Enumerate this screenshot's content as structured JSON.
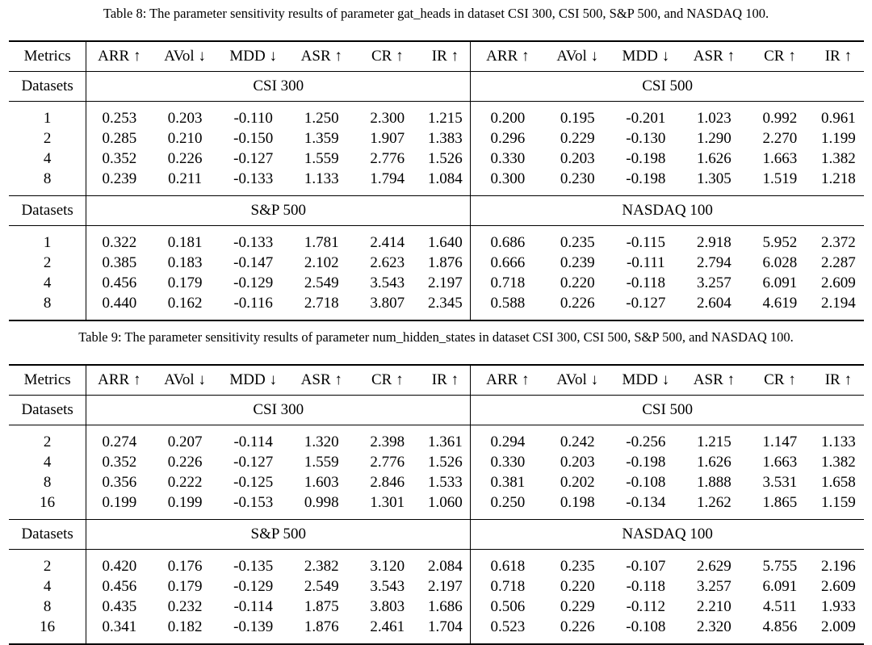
{
  "tables": [
    {
      "caption": "Table 8: The parameter sensitivity results of parameter gat_heads in dataset CSI 300, CSI 500, S&P 500, and NASDAQ 100.",
      "metrics_label": "Metrics",
      "metrics": [
        "ARR ↑",
        "AVol ↓",
        "MDD ↓",
        "ASR ↑",
        "CR ↑",
        "IR ↑",
        "ARR ↑",
        "AVol ↓",
        "MDD ↓",
        "ASR ↑",
        "CR ↑",
        "IR ↑"
      ],
      "datasets_label": "Datasets",
      "blocks": [
        {
          "left_dataset": "CSI 300",
          "right_dataset": "CSI 500",
          "rows": [
            {
              "key": "1",
              "values": [
                "0.253",
                "0.203",
                "-0.110",
                "1.250",
                "2.300",
                "1.215",
                "0.200",
                "0.195",
                "-0.201",
                "1.023",
                "0.992",
                "0.961"
              ],
              "bold": [
                false,
                true,
                true,
                false,
                false,
                false,
                false,
                true,
                false,
                false,
                false,
                false
              ]
            },
            {
              "key": "2",
              "values": [
                "0.285",
                "0.210",
                "-0.150",
                "1.359",
                "1.907",
                "1.383",
                "0.296",
                "0.229",
                "-0.130",
                "1.290",
                "2.270",
                "1.199"
              ],
              "bold": [
                false,
                false,
                false,
                false,
                false,
                false,
                false,
                false,
                true,
                false,
                true,
                false
              ]
            },
            {
              "key": "4",
              "values": [
                "0.352",
                "0.226",
                "-0.127",
                "1.559",
                "2.776",
                "1.526",
                "0.330",
                "0.203",
                "-0.198",
                "1.626",
                "1.663",
                "1.382"
              ],
              "bold": [
                true,
                false,
                false,
                true,
                true,
                true,
                true,
                false,
                false,
                true,
                false,
                true
              ]
            },
            {
              "key": "8",
              "values": [
                "0.239",
                "0.211",
                "-0.133",
                "1.133",
                "1.794",
                "1.084",
                "0.300",
                "0.230",
                "-0.198",
                "1.305",
                "1.519",
                "1.218"
              ],
              "bold": [
                false,
                false,
                false,
                false,
                false,
                false,
                false,
                false,
                false,
                false,
                false,
                false
              ]
            }
          ]
        },
        {
          "left_dataset": "S&P 500",
          "right_dataset": "NASDAQ 100",
          "rows": [
            {
              "key": "1",
              "values": [
                "0.322",
                "0.181",
                "-0.133",
                "1.781",
                "2.414",
                "1.640",
                "0.686",
                "0.235",
                "-0.115",
                "2.918",
                "5.952",
                "2.372"
              ],
              "bold": [
                false,
                false,
                false,
                false,
                false,
                false,
                false,
                false,
                false,
                false,
                false,
                false
              ]
            },
            {
              "key": "2",
              "values": [
                "0.385",
                "0.183",
                "-0.147",
                "2.102",
                "2.623",
                "1.876",
                "0.666",
                "0.239",
                "-0.111",
                "2.794",
                "6.028",
                "2.287"
              ],
              "bold": [
                false,
                false,
                false,
                false,
                false,
                false,
                false,
                false,
                true,
                false,
                false,
                false
              ]
            },
            {
              "key": "4",
              "values": [
                "0.456",
                "0.179",
                "-0.129",
                "2.549",
                "3.543",
                "2.197",
                "0.718",
                "0.220",
                "-0.118",
                "3.257",
                "6.091",
                "2.609"
              ],
              "bold": [
                true,
                false,
                false,
                true,
                false,
                false,
                true,
                true,
                false,
                true,
                true,
                true
              ]
            },
            {
              "key": "8",
              "values": [
                "0.440",
                "0.162",
                "-0.116",
                "2.718",
                "3.807",
                "2.345",
                "0.588",
                "0.226",
                "-0.127",
                "2.604",
                "4.619",
                "2.194"
              ],
              "bold": [
                false,
                true,
                true,
                false,
                true,
                true,
                false,
                false,
                false,
                false,
                false,
                false
              ]
            }
          ]
        }
      ]
    },
    {
      "caption": "Table 9: The parameter sensitivity results of parameter num_hidden_states in dataset CSI 300, CSI 500, S&P 500, and NASDAQ 100.",
      "metrics_label": "Metrics",
      "metrics": [
        "ARR ↑",
        "AVol ↓",
        "MDD ↓",
        "ASR ↑",
        "CR ↑",
        "IR ↑",
        "ARR ↑",
        "AVol ↓",
        "MDD ↓",
        "ASR ↑",
        "CR ↑",
        "IR ↑"
      ],
      "datasets_label": "Datasets",
      "blocks": [
        {
          "left_dataset": "CSI 300",
          "right_dataset": "CSI 500",
          "rows": [
            {
              "key": "2",
              "values": [
                "0.274",
                "0.207",
                "-0.114",
                "1.320",
                "2.398",
                "1.361",
                "0.294",
                "0.242",
                "-0.256",
                "1.215",
                "1.147",
                "1.133"
              ],
              "bold": [
                false,
                false,
                true,
                false,
                false,
                false,
                false,
                false,
                false,
                false,
                false,
                false
              ]
            },
            {
              "key": "4",
              "values": [
                "0.352",
                "0.226",
                "-0.127",
                "1.559",
                "2.776",
                "1.526",
                "0.330",
                "0.203",
                "-0.198",
                "1.626",
                "1.663",
                "1.382"
              ],
              "bold": [
                false,
                false,
                false,
                false,
                false,
                false,
                false,
                false,
                false,
                false,
                false,
                false
              ]
            },
            {
              "key": "8",
              "values": [
                "0.356",
                "0.222",
                "-0.125",
                "1.603",
                "2.846",
                "1.533",
                "0.381",
                "0.202",
                "-0.108",
                "1.888",
                "3.531",
                "1.658"
              ],
              "bold": [
                true,
                false,
                false,
                true,
                true,
                true,
                true,
                false,
                true,
                true,
                true,
                true
              ]
            },
            {
              "key": "16",
              "values": [
                "0.199",
                "0.199",
                "-0.153",
                "0.998",
                "1.301",
                "1.060",
                "0.250",
                "0.198",
                "-0.134",
                "1.262",
                "1.865",
                "1.159"
              ],
              "bold": [
                false,
                true,
                false,
                false,
                false,
                false,
                false,
                true,
                false,
                false,
                false,
                false
              ]
            }
          ]
        },
        {
          "left_dataset": "S&P 500",
          "right_dataset": "NASDAQ 100",
          "rows": [
            {
              "key": "2",
              "values": [
                "0.420",
                "0.176",
                "-0.135",
                "2.382",
                "3.120",
                "2.084",
                "0.618",
                "0.235",
                "-0.107",
                "2.629",
                "5.755",
                "2.196"
              ],
              "bold": [
                false,
                true,
                false,
                false,
                false,
                false,
                false,
                false,
                true,
                false,
                false,
                false
              ]
            },
            {
              "key": "4",
              "values": [
                "0.456",
                "0.179",
                "-0.129",
                "2.549",
                "3.543",
                "2.197",
                "0.718",
                "0.220",
                "-0.118",
                "3.257",
                "6.091",
                "2.609"
              ],
              "bold": [
                true,
                false,
                false,
                true,
                false,
                true,
                true,
                true,
                false,
                true,
                true,
                true
              ]
            },
            {
              "key": "8",
              "values": [
                "0.435",
                "0.232",
                "-0.114",
                "1.875",
                "3.803",
                "1.686",
                "0.506",
                "0.229",
                "-0.112",
                "2.210",
                "4.511",
                "1.933"
              ],
              "bold": [
                false,
                false,
                true,
                false,
                true,
                false,
                false,
                false,
                false,
                false,
                false,
                false
              ]
            },
            {
              "key": "16",
              "values": [
                "0.341",
                "0.182",
                "-0.139",
                "1.876",
                "2.461",
                "1.704",
                "0.523",
                "0.226",
                "-0.108",
                "2.320",
                "4.856",
                "2.009"
              ],
              "bold": [
                false,
                false,
                false,
                false,
                false,
                false,
                false,
                false,
                false,
                false,
                false,
                false
              ]
            }
          ]
        }
      ]
    }
  ]
}
